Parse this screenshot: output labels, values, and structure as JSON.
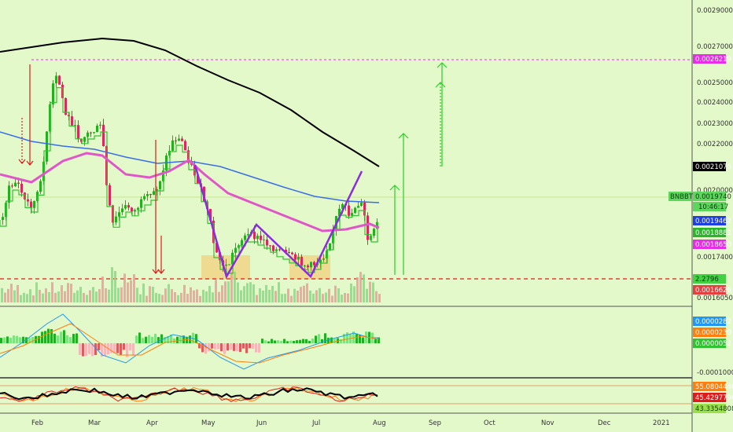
{
  "symbol": "BNBBTC",
  "countdown": "10:46:17",
  "colors": {
    "background": "#e3f9c9",
    "candle_up": "#22b11d",
    "candle_down": "#e0245e",
    "step_line": "#31c231",
    "ma_blue": "#3a6ee8",
    "ma_pink": "#e056c9",
    "ma_black": "#000000",
    "pattern": "#8a2be2",
    "zone": "#f5c56b",
    "arrow_green": "#27d027",
    "arrow_red": "#e01b1b",
    "macd_line": "#2196f3",
    "signal_line": "#ff7f0e"
  },
  "chart_data": [
    {
      "type": "candlestick",
      "pair": "BNBBTC",
      "x_labels": [
        "Feb",
        "Mar",
        "Apr",
        "May",
        "Jun",
        "Jul",
        "Aug",
        "Sep",
        "Oct",
        "Nov",
        "Dec",
        "2021"
      ],
      "y_ticks": [
        "0.0029000",
        "0.0027000",
        "0.0025000",
        "0.0024000",
        "0.0023000",
        "0.0022000",
        "0.0020000",
        "0.0017400",
        "0.0016050"
      ],
      "y_range": [
        0.001605,
        0.0029
      ],
      "price_labels": [
        {
          "name": "resistance",
          "text": "0.0026219",
          "color": "#e62ee6"
        },
        {
          "name": "ma-black",
          "text": "0.0021076",
          "color": "#000000"
        },
        {
          "name": "last-price",
          "text": "0.0019740",
          "color": "#5cd65c"
        },
        {
          "name": "ma-blue",
          "text": "0.0019462",
          "color": "#1f3fe0"
        },
        {
          "name": "step-line",
          "text": "0.0018882",
          "color": "#2bb52b"
        },
        {
          "name": "ma-pink",
          "text": "0.0018650",
          "color": "#e62ee6"
        },
        {
          "name": "support",
          "text": "0.0016626",
          "color": "#e34040"
        }
      ],
      "volume_label": {
        "text": "2.2796",
        "color": "#42d142"
      },
      "overlays": [
        "MA black",
        "MA blue",
        "MA pink",
        "step line green",
        "W pattern purple"
      ],
      "annotations": [
        "support dashed red line",
        "resistance dashed magenta line",
        "green up arrows",
        "red down arrows",
        "orange accumulation zones"
      ]
    },
    {
      "type": "bar",
      "name": "MACD",
      "values_labels": [
        {
          "text": "0.0000282",
          "color": "#2196f3"
        },
        {
          "text": "0.0000230",
          "color": "#ff7f0e"
        },
        {
          "text": "0.0000052",
          "color": "#31c231"
        }
      ],
      "y_ticks": [
        "-0.0001000"
      ]
    },
    {
      "type": "line",
      "name": "oscillator",
      "values_labels": [
        {
          "text": "55.0804446",
          "color": "#ff7f0e"
        },
        {
          "text": "45.4297796",
          "color": "#e01b1b"
        },
        {
          "text": "43.3354808",
          "color": "#9be04a"
        }
      ]
    }
  ]
}
